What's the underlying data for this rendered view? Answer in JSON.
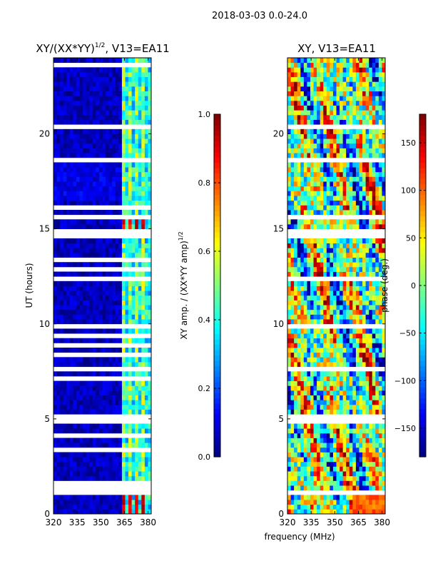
{
  "chart_data": {
    "type": "heatmap",
    "suptitle": "2018-03-03 0.0-24.0",
    "shared_xlabel": "frequency (MHz)",
    "panels": [
      {
        "id": "amp",
        "title_main": "XY/(XX*YY)",
        "title_sup": "1/2",
        "title_tail": ", V13=EA11",
        "ylabel": "UT (hours)",
        "xlim": [
          320,
          382
        ],
        "ylim": [
          0,
          24
        ],
        "xticks": [
          320,
          335,
          350,
          365,
          380
        ],
        "yticks": [
          0,
          5,
          10,
          15,
          20
        ],
        "colorbar": {
          "label_main": "XY amp. / (XX*YY amp)",
          "label_sup": "1/2",
          "range": [
            0.0,
            1.0
          ],
          "ticks": [
            0.0,
            0.2,
            0.4,
            0.6,
            0.8,
            1.0
          ],
          "tick_labels": [
            "0.0",
            "0.2",
            "0.4",
            "0.6",
            "0.8",
            "1.0"
          ]
        },
        "flagged_hours": [
          [
            1.05,
            1.4
          ],
          [
            1.5,
            1.75
          ],
          [
            2.2,
            2.35
          ],
          [
            2.7,
            2.85
          ],
          [
            3.3,
            3.42
          ],
          [
            4.05,
            4.2
          ],
          [
            4.8,
            5.25
          ],
          [
            5.45,
            5.55
          ],
          [
            5.9,
            6.05
          ],
          [
            6.45,
            6.55
          ],
          [
            7.1,
            7.2
          ],
          [
            7.45,
            7.85
          ],
          [
            8.3,
            8.4
          ],
          [
            8.8,
            8.9
          ],
          [
            9.3,
            9.42
          ],
          [
            9.8,
            9.9
          ],
          [
            10.25,
            10.35
          ],
          [
            10.7,
            10.8
          ],
          [
            11.25,
            11.35
          ],
          [
            11.75,
            11.85
          ],
          [
            12.35,
            12.45
          ],
          [
            12.8,
            12.9
          ],
          [
            13.3,
            13.4
          ],
          [
            13.75,
            13.85
          ],
          [
            14.2,
            14.3
          ],
          [
            14.55,
            14.95
          ],
          [
            15.55,
            15.7
          ],
          [
            16.1,
            16.2
          ],
          [
            16.7,
            16.82
          ],
          [
            18.6,
            18.72
          ],
          [
            19.2,
            19.32
          ],
          [
            19.75,
            19.85
          ],
          [
            20.3,
            20.42
          ],
          [
            21.0,
            21.12
          ],
          [
            21.7,
            21.82
          ],
          [
            22.4,
            22.52
          ],
          [
            23.0,
            23.12
          ],
          [
            23.55,
            23.65
          ]
        ],
        "hot_rows_hours": [
          [
            0.0,
            1.0
          ],
          [
            15.0,
            15.55
          ]
        ],
        "hot_channels_mhz": [
          [
            363.8,
            366.5
          ],
          [
            367.2,
            370.3
          ],
          [
            371.2,
            373.8
          ],
          [
            375.0,
            378.2
          ]
        ]
      },
      {
        "id": "phase",
        "title": "XY, V13=EA11",
        "xlim": [
          320,
          382
        ],
        "ylim": [
          0,
          24
        ],
        "xticks": [
          320,
          335,
          350,
          365,
          380
        ],
        "yticks": [
          0,
          5,
          10,
          15,
          20
        ],
        "colorbar": {
          "label": "phase (deg.)",
          "range": [
            -180,
            180
          ],
          "ticks": [
            -150,
            -100,
            -50,
            0,
            50,
            100,
            150
          ],
          "tick_labels": [
            "−150",
            "−100",
            "−50",
            "0",
            "50",
            "100",
            "150"
          ]
        },
        "flagged_hours": [
          [
            1.05,
            1.15
          ],
          [
            2.2,
            2.3
          ],
          [
            4.8,
            5.2
          ],
          [
            5.45,
            5.55
          ],
          [
            7.45,
            7.8
          ],
          [
            9.8,
            9.9
          ],
          [
            12.35,
            12.45
          ],
          [
            14.55,
            14.95
          ],
          [
            15.55,
            15.65
          ],
          [
            18.6,
            18.7
          ],
          [
            20.3,
            20.4
          ],
          [
            22.4,
            22.5
          ]
        ]
      }
    ],
    "colors": {
      "jet_stops": [
        "#00007f",
        "#0000ff",
        "#007fff",
        "#00ffff",
        "#7fff7f",
        "#ffff00",
        "#ff7f00",
        "#ff0000",
        "#7f0000"
      ]
    }
  }
}
